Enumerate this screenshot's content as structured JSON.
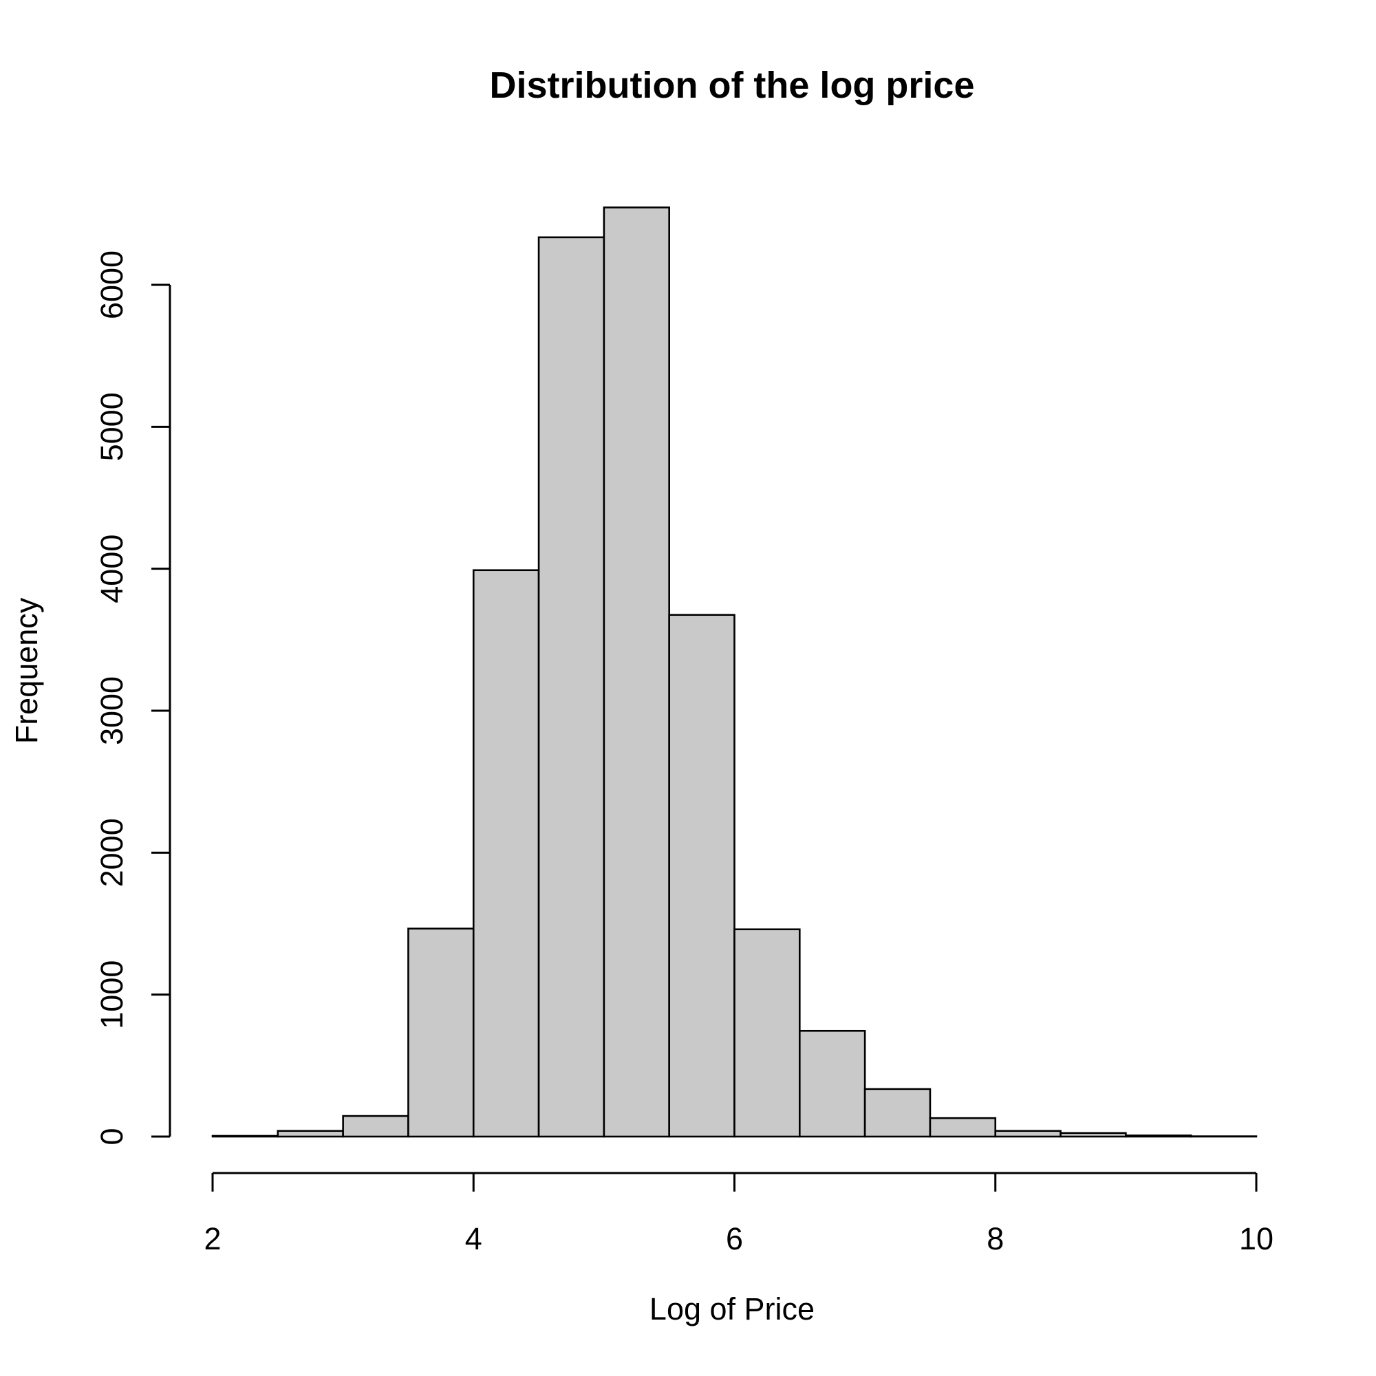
{
  "chart_data": {
    "type": "bar",
    "title": "Distribution of the log price",
    "xlabel": "Log of Price",
    "ylabel": "Frequency",
    "bin_edges": [
      1.5,
      2.0,
      2.5,
      3.0,
      3.5,
      4.0,
      4.5,
      5.0,
      5.5,
      6.0,
      6.5,
      7.0,
      7.5,
      8.0,
      8.5,
      9.0,
      9.5,
      10.0
    ],
    "values": [
      0,
      5,
      40,
      145,
      1465,
      3990,
      6335,
      6545,
      3675,
      1460,
      745,
      335,
      130,
      40,
      25,
      8,
      2
    ],
    "xlim": [
      1.5,
      10
    ],
    "ylim": [
      0,
      6545
    ],
    "x_ticks": [
      2,
      4,
      6,
      8,
      10
    ],
    "y_ticks": [
      0,
      1000,
      2000,
      3000,
      4000,
      5000,
      6000
    ],
    "bar_fill": "#c9c9c9",
    "bar_stroke": "#000000",
    "grid": false
  }
}
